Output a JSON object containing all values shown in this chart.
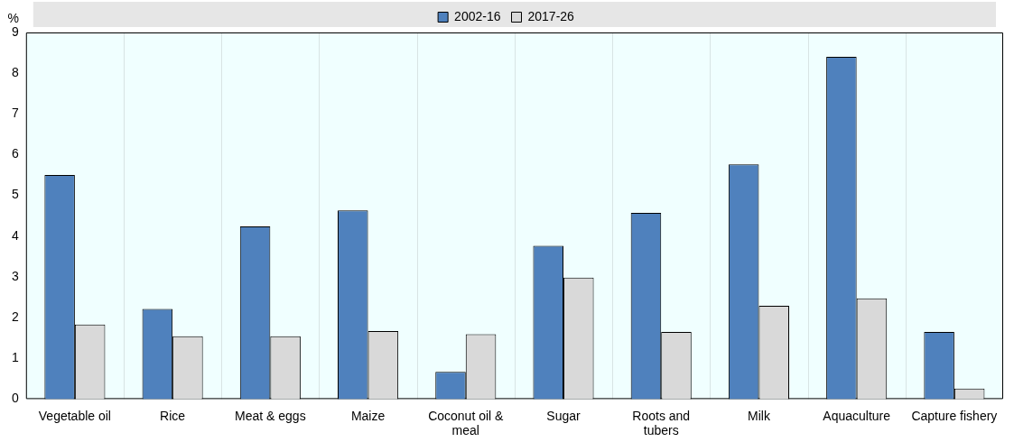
{
  "chart_data": {
    "type": "bar",
    "ylabel": "%",
    "categories": [
      "Vegetable oil",
      "Rice",
      "Meat & eggs",
      "Maize",
      "Coconut oil & meal",
      "Sugar",
      "Roots and tubers",
      "Milk",
      "Aquaculture",
      "Capture fishery"
    ],
    "series": [
      {
        "name": "2002-16",
        "color": "#4f81bd",
        "values": [
          5.5,
          2.21,
          4.24,
          4.63,
          0.67,
          3.76,
          4.57,
          5.76,
          8.4,
          1.65
        ]
      },
      {
        "name": "2017-26",
        "color": "#d9d9d9",
        "values": [
          1.83,
          1.54,
          1.54,
          1.67,
          1.59,
          2.98,
          1.65,
          2.29,
          2.47,
          0.26
        ]
      }
    ],
    "ylim": [
      0,
      9
    ],
    "yticks": [
      0,
      1,
      2,
      3,
      4,
      5,
      6,
      7,
      8,
      9
    ],
    "grid": "x",
    "legend": "top"
  }
}
